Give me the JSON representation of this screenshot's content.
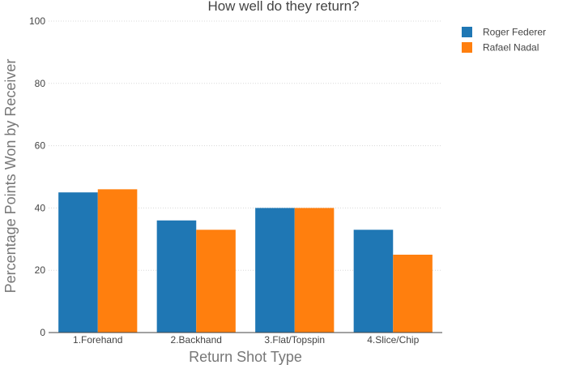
{
  "chart_data": {
    "type": "bar",
    "title": "How well do they return?",
    "xlabel": "Return Shot Type",
    "ylabel": "Percentage Points Won by Receiver",
    "categories": [
      "1.Forehand",
      "2.Backhand",
      "3.Flat/Topspin",
      "4.Slice/Chip"
    ],
    "series": [
      {
        "name": "Roger Federer",
        "color": "#1f77b4",
        "values": [
          45,
          36,
          40,
          33
        ]
      },
      {
        "name": "Rafael Nadal",
        "color": "#ff7f0e",
        "values": [
          46,
          33,
          40,
          25
        ]
      }
    ],
    "ylim": [
      0,
      100
    ],
    "yticks": [
      0,
      20,
      40,
      60,
      80,
      100
    ],
    "grid": true,
    "legend_position": "top-right"
  }
}
